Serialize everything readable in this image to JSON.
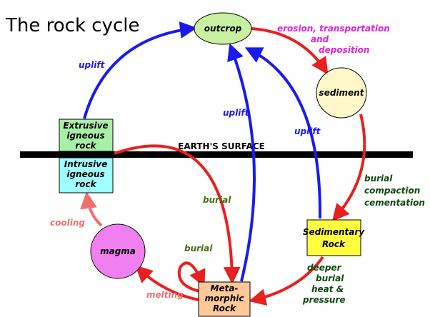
{
  "title": "The rock cycle",
  "surface": "EARTH'S SURFACE",
  "nodes": [
    {
      "id": "outcrop",
      "lines": [
        "outcrop"
      ]
    },
    {
      "id": "sediment",
      "lines": [
        "sediment"
      ]
    },
    {
      "id": "magma",
      "lines": [
        "magma"
      ]
    },
    {
      "id": "extrusive",
      "lines": [
        "Extrusive",
        "igneous",
        "rock"
      ]
    },
    {
      "id": "intrusive",
      "lines": [
        "Intrusive",
        "igneous",
        "rock"
      ]
    },
    {
      "id": "sedimentary",
      "lines": [
        "Sedimentary",
        "Rock"
      ]
    },
    {
      "id": "metamorphic",
      "lines": [
        "Meta-",
        "morphic",
        "Rock"
      ]
    }
  ],
  "labels": [
    {
      "lines": [
        "erosion, transportation",
        "and",
        "deposition"
      ]
    },
    {
      "lines": [
        "uplift"
      ]
    },
    {
      "lines": [
        "uplift"
      ]
    },
    {
      "lines": [
        "uplift"
      ]
    },
    {
      "lines": [
        "burial"
      ]
    },
    {
      "lines": [
        "burial"
      ]
    },
    {
      "lines": [
        "burial",
        "compaction",
        "cementation"
      ]
    },
    {
      "lines": [
        "deeper",
        "burial",
        "heat &",
        "pressure"
      ]
    },
    {
      "lines": [
        "cooling"
      ]
    },
    {
      "lines": [
        "melting"
      ]
    }
  ]
}
